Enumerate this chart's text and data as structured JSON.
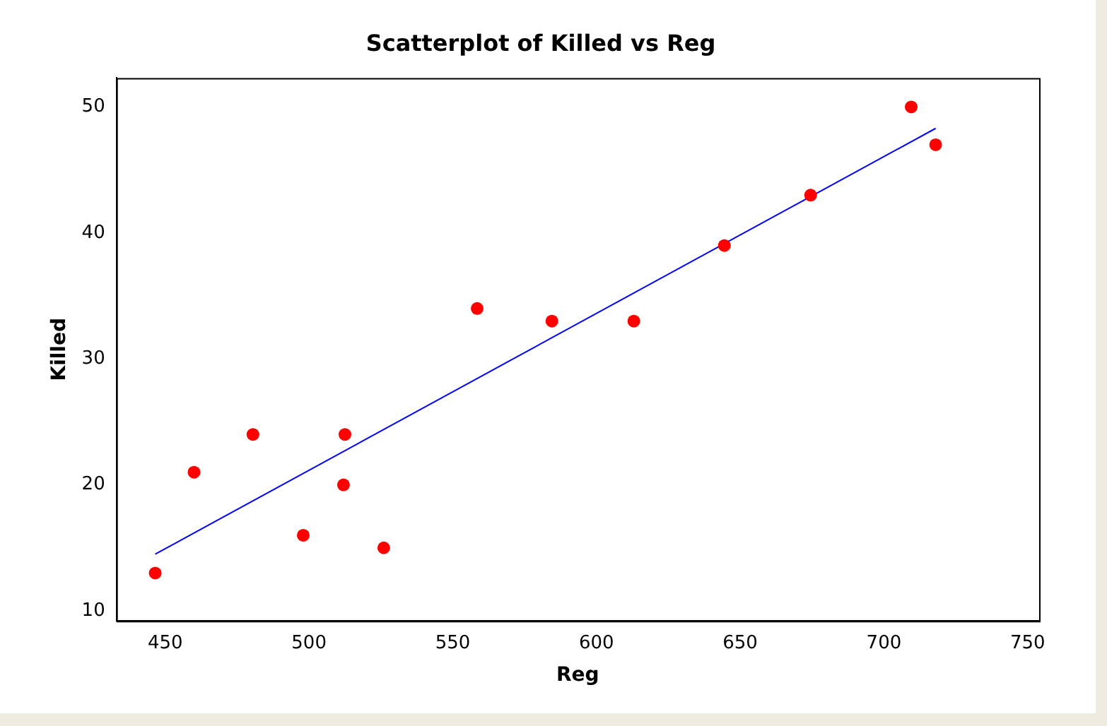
{
  "chart_data": {
    "type": "scatter",
    "title": "Scatterplot of Killed vs Reg",
    "xlabel": "Reg",
    "ylabel": "Killed",
    "xlim": [
      433,
      754
    ],
    "ylim": [
      9.2,
      52.3
    ],
    "xticks": [
      450,
      500,
      550,
      600,
      650,
      700,
      750
    ],
    "yticks": [
      10,
      20,
      30,
      40,
      50
    ],
    "grid": false,
    "legend": false,
    "series": [
      {
        "color": "#ff0000",
        "marker": "circle",
        "x": [
          446.5,
          460,
          480.5,
          498,
          512,
          512.5,
          526,
          558.5,
          584.5,
          613,
          644.5,
          674.5,
          709.5,
          718
        ],
        "values": [
          13,
          21,
          24,
          16,
          20,
          24,
          15,
          34,
          33,
          33,
          39,
          43,
          50,
          47
        ]
      },
      {
        "type": "line",
        "color": "#0000ff",
        "marker": "none",
        "line_style": "solid",
        "x": [
          446.5,
          718
        ],
        "values": [
          14.5,
          48.3
        ]
      }
    ]
  }
}
